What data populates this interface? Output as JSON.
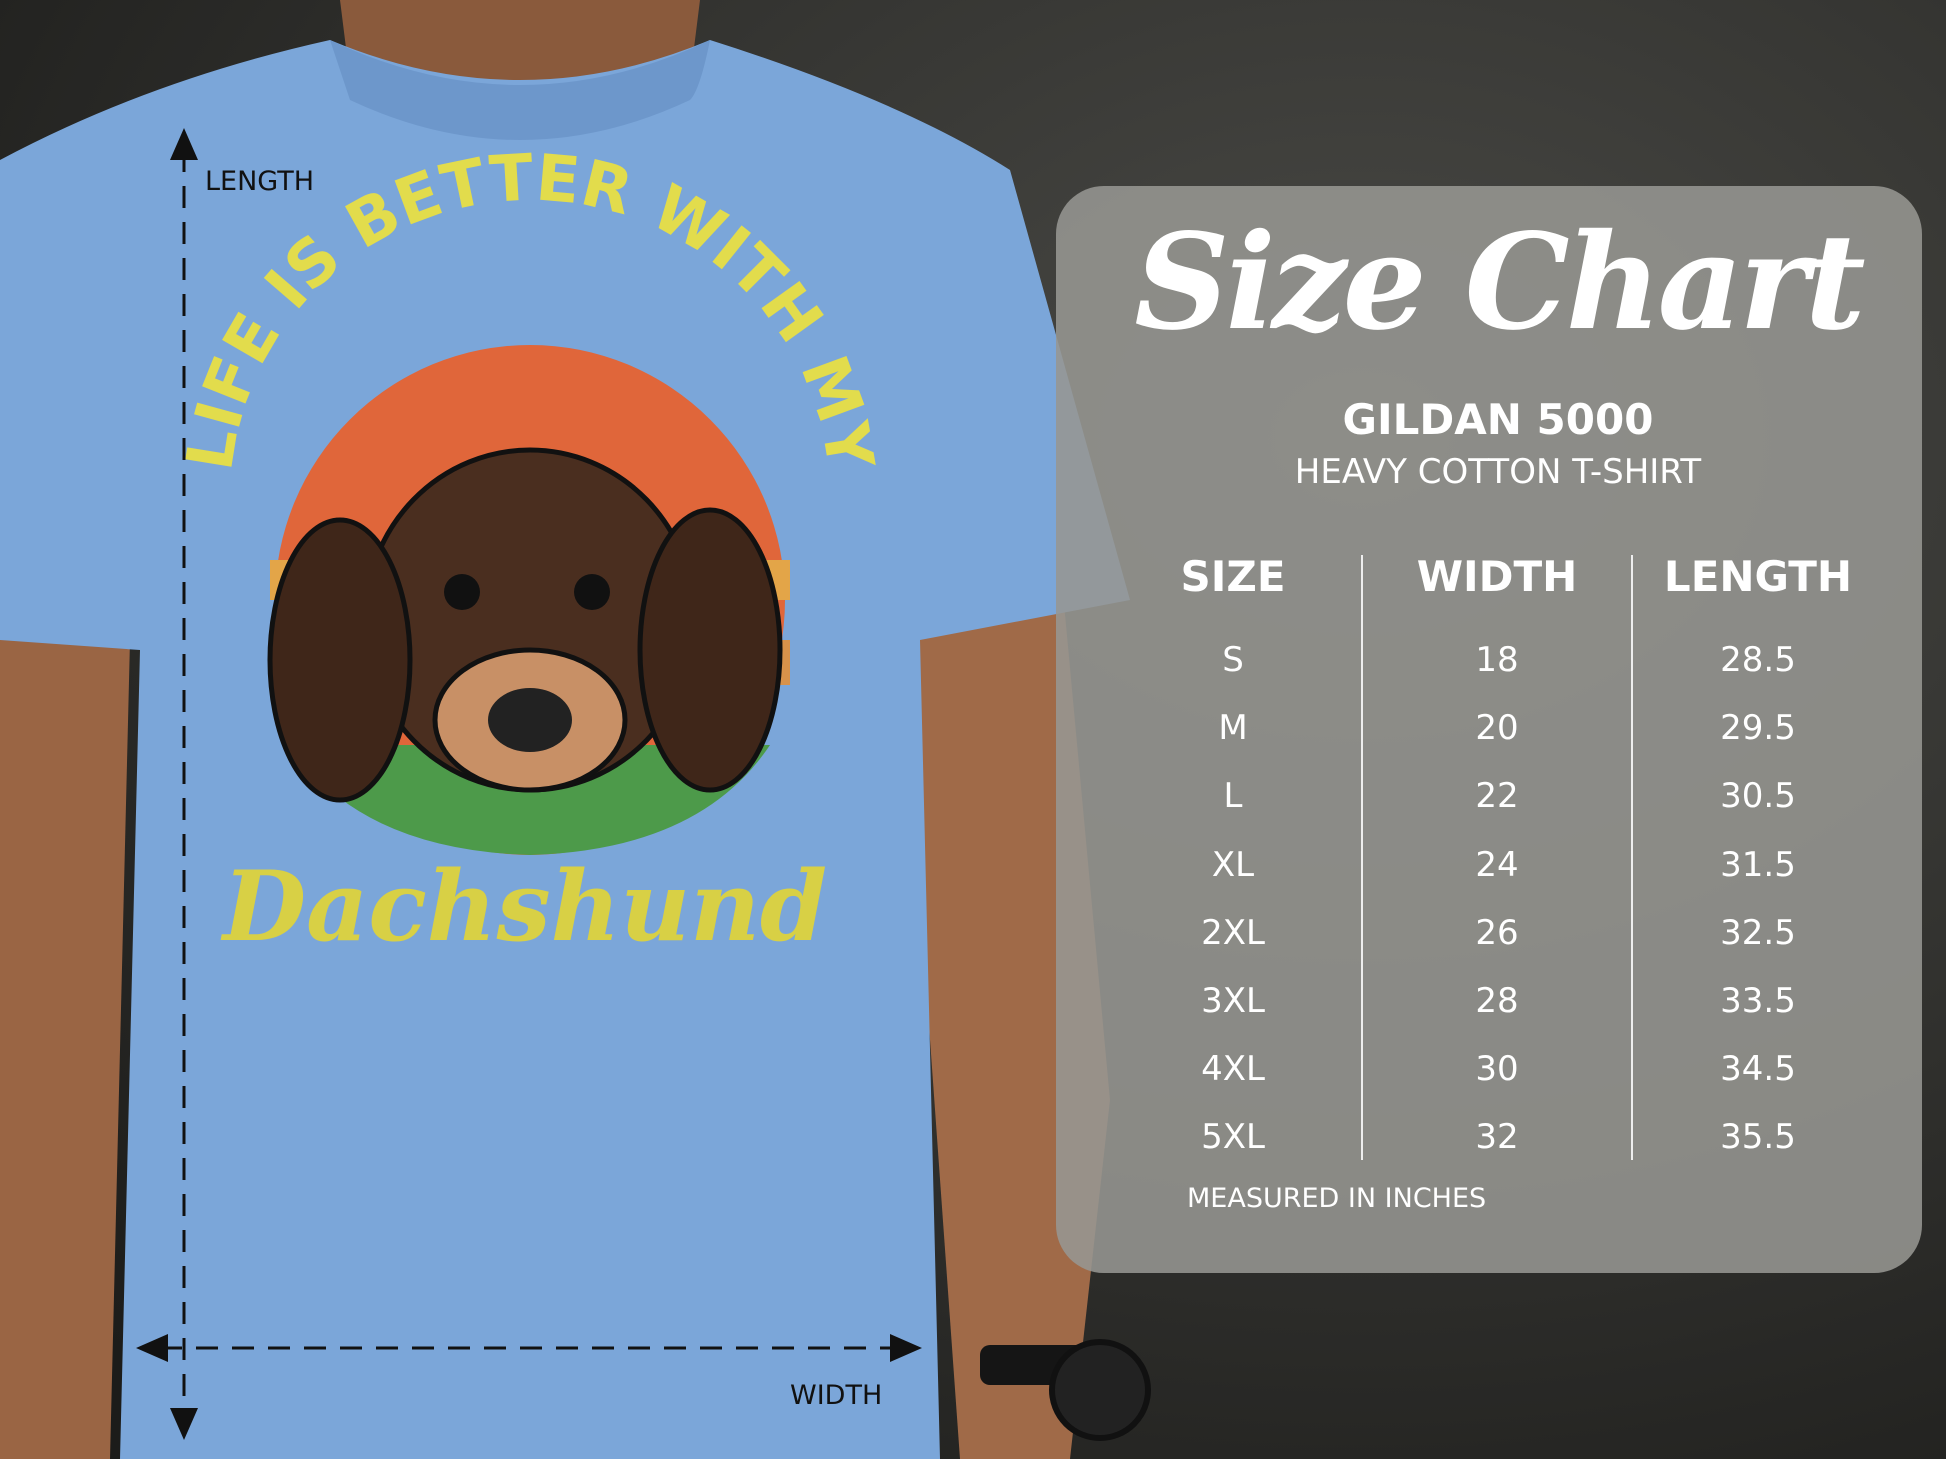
{
  "shirt": {
    "graphic_arc_text": "LIFE IS BETTER WITH MY",
    "graphic_script_text": "Dachshund",
    "length_label": "LENGTH",
    "width_label": "WIDTH",
    "color": "#7ba6d9"
  },
  "chart": {
    "title": "Size Chart",
    "brand": "GILDAN 5000",
    "product": "HEAVY COTTON T-SHIRT",
    "headers": [
      "SIZE",
      "WIDTH",
      "LENGTH"
    ],
    "rows": [
      [
        "S",
        "18",
        "28.5"
      ],
      [
        "M",
        "20",
        "29.5"
      ],
      [
        "L",
        "22",
        "30.5"
      ],
      [
        "XL",
        "24",
        "31.5"
      ],
      [
        "2XL",
        "26",
        "32.5"
      ],
      [
        "3XL",
        "28",
        "33.5"
      ],
      [
        "4XL",
        "30",
        "34.5"
      ],
      [
        "5XL",
        "32",
        "35.5"
      ]
    ],
    "footnote": "MEASURED IN INCHES"
  }
}
